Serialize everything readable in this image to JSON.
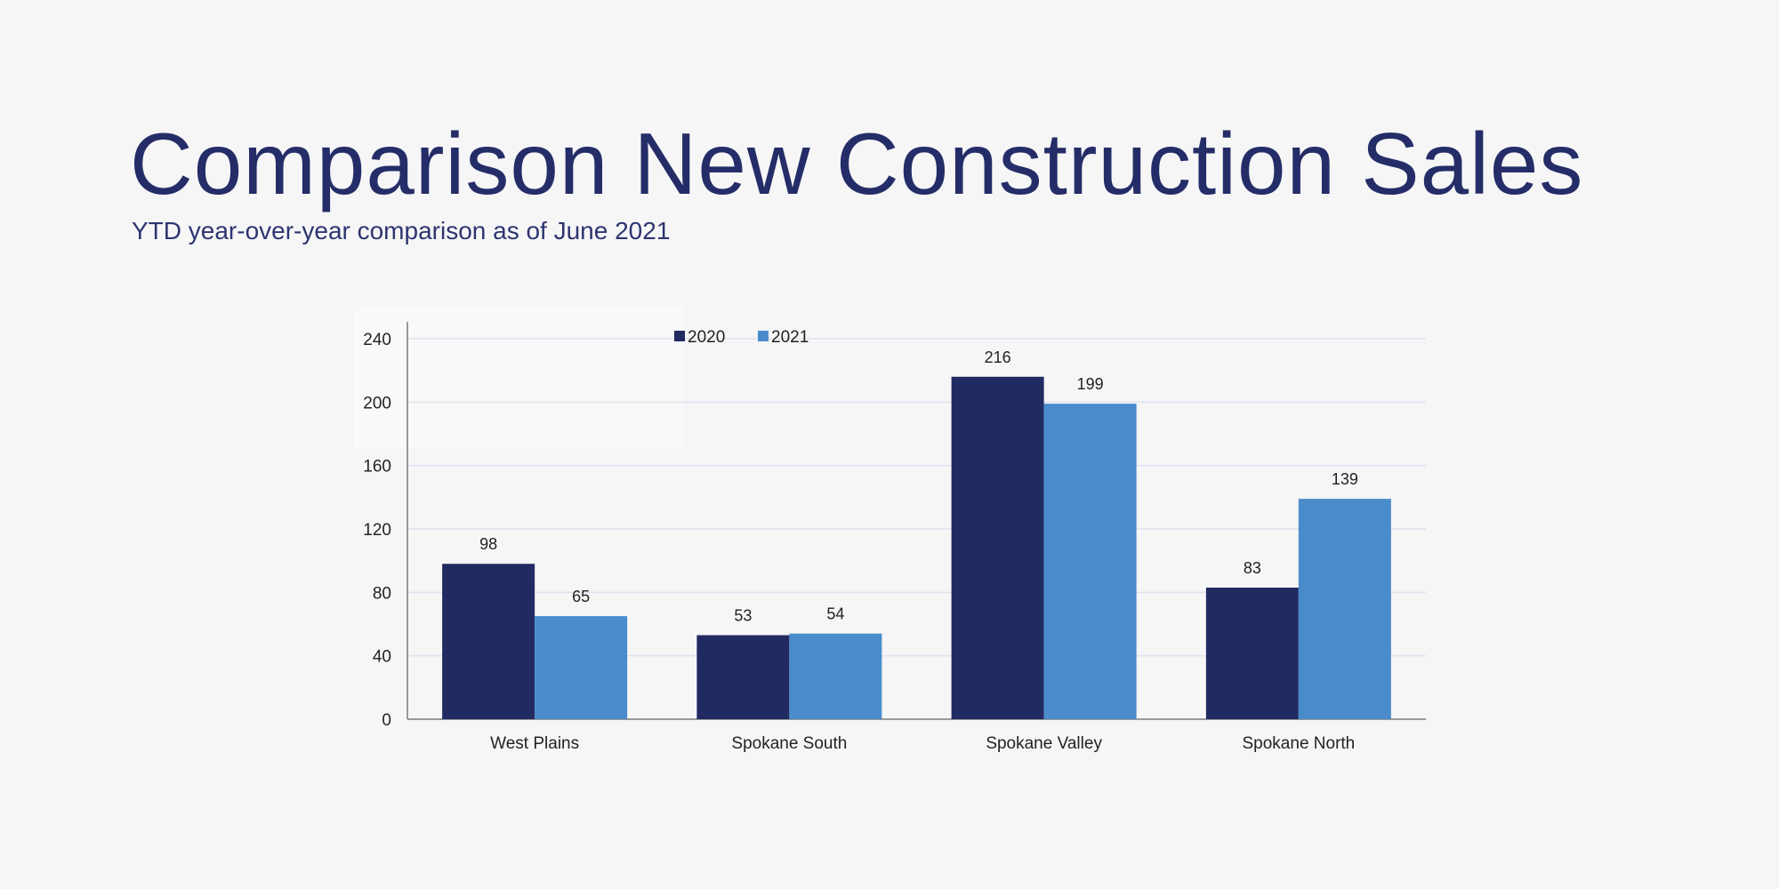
{
  "title": "Comparison New Construction Sales",
  "subtitle": "YTD year-over-year comparison as of June 2021",
  "chart_data": {
    "type": "bar",
    "title": "",
    "xlabel": "",
    "ylabel": "",
    "categories": [
      "West Plains",
      "Spokane South",
      "Spokane Valley",
      "Spokane North"
    ],
    "series": [
      {
        "name": "2020",
        "color": "#222a62",
        "values": [
          98,
          53,
          216,
          83
        ]
      },
      {
        "name": "2021",
        "color": "#4a8ccb",
        "values": [
          65,
          54,
          199,
          139
        ]
      }
    ],
    "ylim": [
      0,
      240
    ],
    "yticks": [
      0,
      40,
      80,
      120,
      160,
      200,
      240
    ],
    "grid": true,
    "legend": "top-center",
    "data_labels": true
  }
}
